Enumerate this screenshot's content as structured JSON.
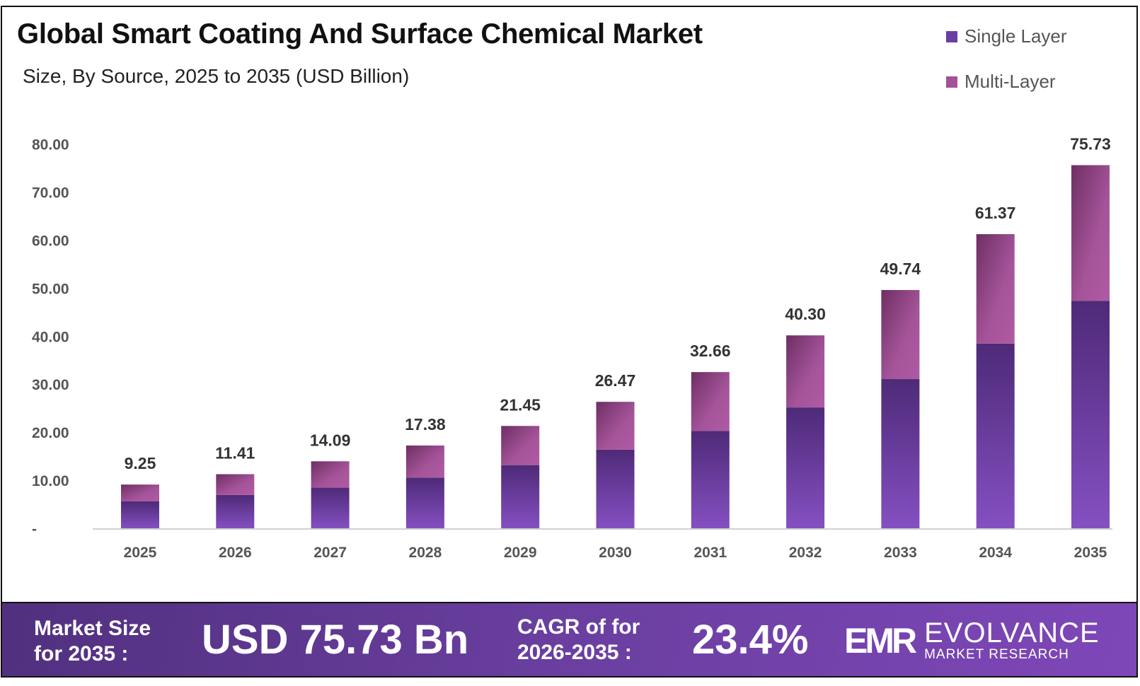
{
  "header": {
    "title": "Global Smart Coating And Surface Chemical Market",
    "subtitle": "Size, By Source, 2025 to 2035 (USD Billion)"
  },
  "legend": [
    {
      "label": "Single Layer",
      "color": "#6a3ea3"
    },
    {
      "label": "Multi-Layer",
      "color": "#a4509a"
    }
  ],
  "chart_data": {
    "type": "bar",
    "stacked": true,
    "title": "Global Smart Coating And Surface Chemical Market",
    "subtitle": "Size, By Source, 2025 to 2035 (USD Billion)",
    "categories": [
      "2025",
      "2026",
      "2027",
      "2028",
      "2029",
      "2030",
      "2031",
      "2032",
      "2033",
      "2034",
      "2035"
    ],
    "series": [
      {
        "name": "Single Layer",
        "values": [
          5.75,
          7.1,
          8.6,
          10.7,
          13.3,
          16.5,
          20.4,
          25.3,
          31.2,
          38.6,
          47.5
        ]
      },
      {
        "name": "Multi-Layer",
        "values": [
          3.5,
          4.31,
          5.49,
          6.68,
          8.15,
          9.97,
          12.26,
          15.0,
          18.54,
          22.77,
          28.23
        ]
      }
    ],
    "totals": [
      "9.25",
      "11.41",
      "14.09",
      "17.38",
      "21.45",
      "26.47",
      "32.66",
      "40.30",
      "49.74",
      "61.37",
      "75.73"
    ],
    "yticks": [
      "-",
      "10.00",
      "20.00",
      "30.00",
      "40.00",
      "50.00",
      "60.00",
      "70.00",
      "80.00"
    ],
    "ylim": [
      0,
      80
    ],
    "xlabel": "",
    "ylabel": "",
    "grid": false,
    "legend_position": "top-right"
  },
  "footer": {
    "market_size_label_1": "Market Size",
    "market_size_label_2": "for 2035 :",
    "market_size_value": "USD 75.73 Bn",
    "cagr_label_1": "CAGR of for",
    "cagr_label_2": "2026-2035 :",
    "cagr_value": "23.4%",
    "logo_mark": "EMR",
    "logo_name": "EVOLVANCE",
    "logo_sub": "MARKET RESEARCH"
  }
}
